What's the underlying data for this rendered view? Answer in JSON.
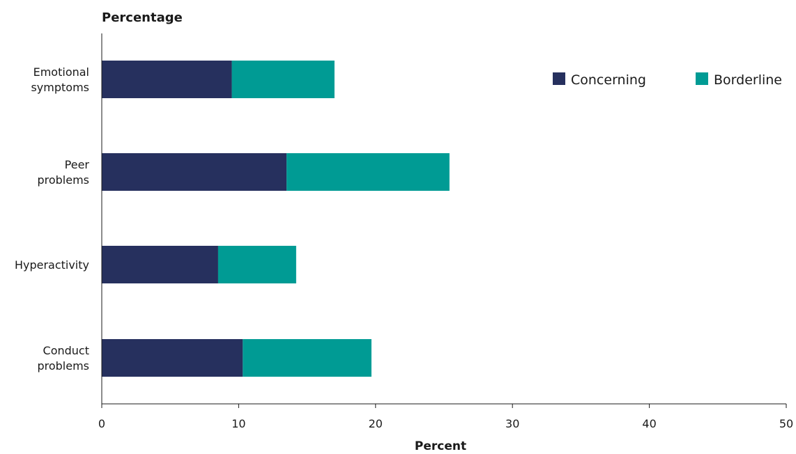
{
  "chart_data": {
    "type": "bar",
    "orientation": "horizontal",
    "stacked": true,
    "title": "Percentage",
    "xlabel": "Percent",
    "ylabel": "",
    "xlim": [
      0,
      50
    ],
    "xticks": [
      0,
      10,
      20,
      30,
      40,
      50
    ],
    "grid": false,
    "legend_position": "top-right",
    "categories": [
      [
        "Emotional",
        "symptoms"
      ],
      [
        "Peer",
        "problems"
      ],
      [
        "Hyperactivity"
      ],
      [
        "Conduct",
        "problems"
      ]
    ],
    "series": [
      {
        "name": "Concerning",
        "color": "#26305e",
        "values": [
          9.5,
          13.5,
          8.5,
          10.3
        ]
      },
      {
        "name": "Borderline",
        "color": "#009b94",
        "values": [
          7.5,
          11.9,
          5.7,
          9.4
        ]
      }
    ]
  }
}
